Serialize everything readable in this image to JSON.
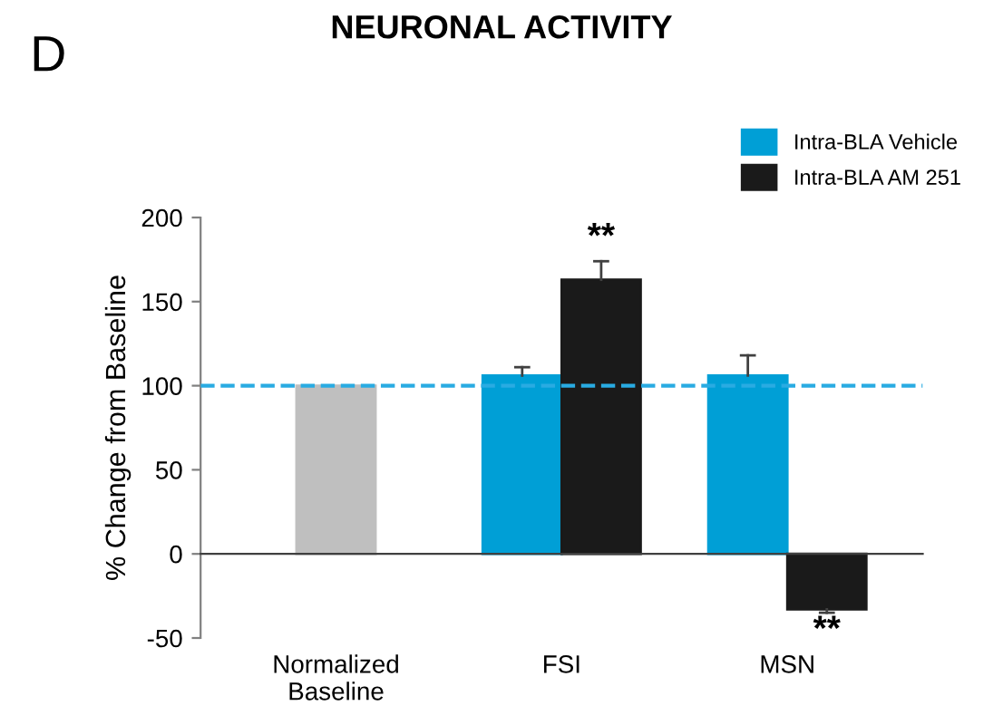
{
  "chart_data": {
    "type": "bar",
    "title": "NEURONAL ACTIVITY",
    "ylabel": "% Change from Baseline",
    "categories": [
      "Normalized\nBaseline",
      "FSI",
      "MSN"
    ],
    "series": [
      {
        "color": "#bfbfbf",
        "values": [
          100,
          null,
          null
        ]
      },
      {
        "name": "Intra-BLA Vehicle",
        "color": "#009fd6",
        "values": [
          null,
          106,
          106
        ],
        "errors": [
          null,
          [
            106,
            111
          ],
          [
            106,
            118
          ]
        ]
      },
      {
        "name": "Intra-BLA AM 251",
        "color": "#1a1a1a",
        "values": [
          null,
          163,
          -33
        ],
        "errors": [
          null,
          [
            163,
            174
          ],
          [
            -35,
            -33
          ]
        ]
      }
    ],
    "ylim": [
      -50,
      200
    ],
    "yticks": [
      -50,
      0,
      50,
      100,
      150,
      200
    ],
    "ref_lines": [
      {
        "axis": "y",
        "value": 100,
        "color": "#29abe2",
        "line_style": "dashed"
      }
    ],
    "annotations": [
      "D",
      "**",
      "**"
    ],
    "legend": "top right",
    "grid": false
  }
}
